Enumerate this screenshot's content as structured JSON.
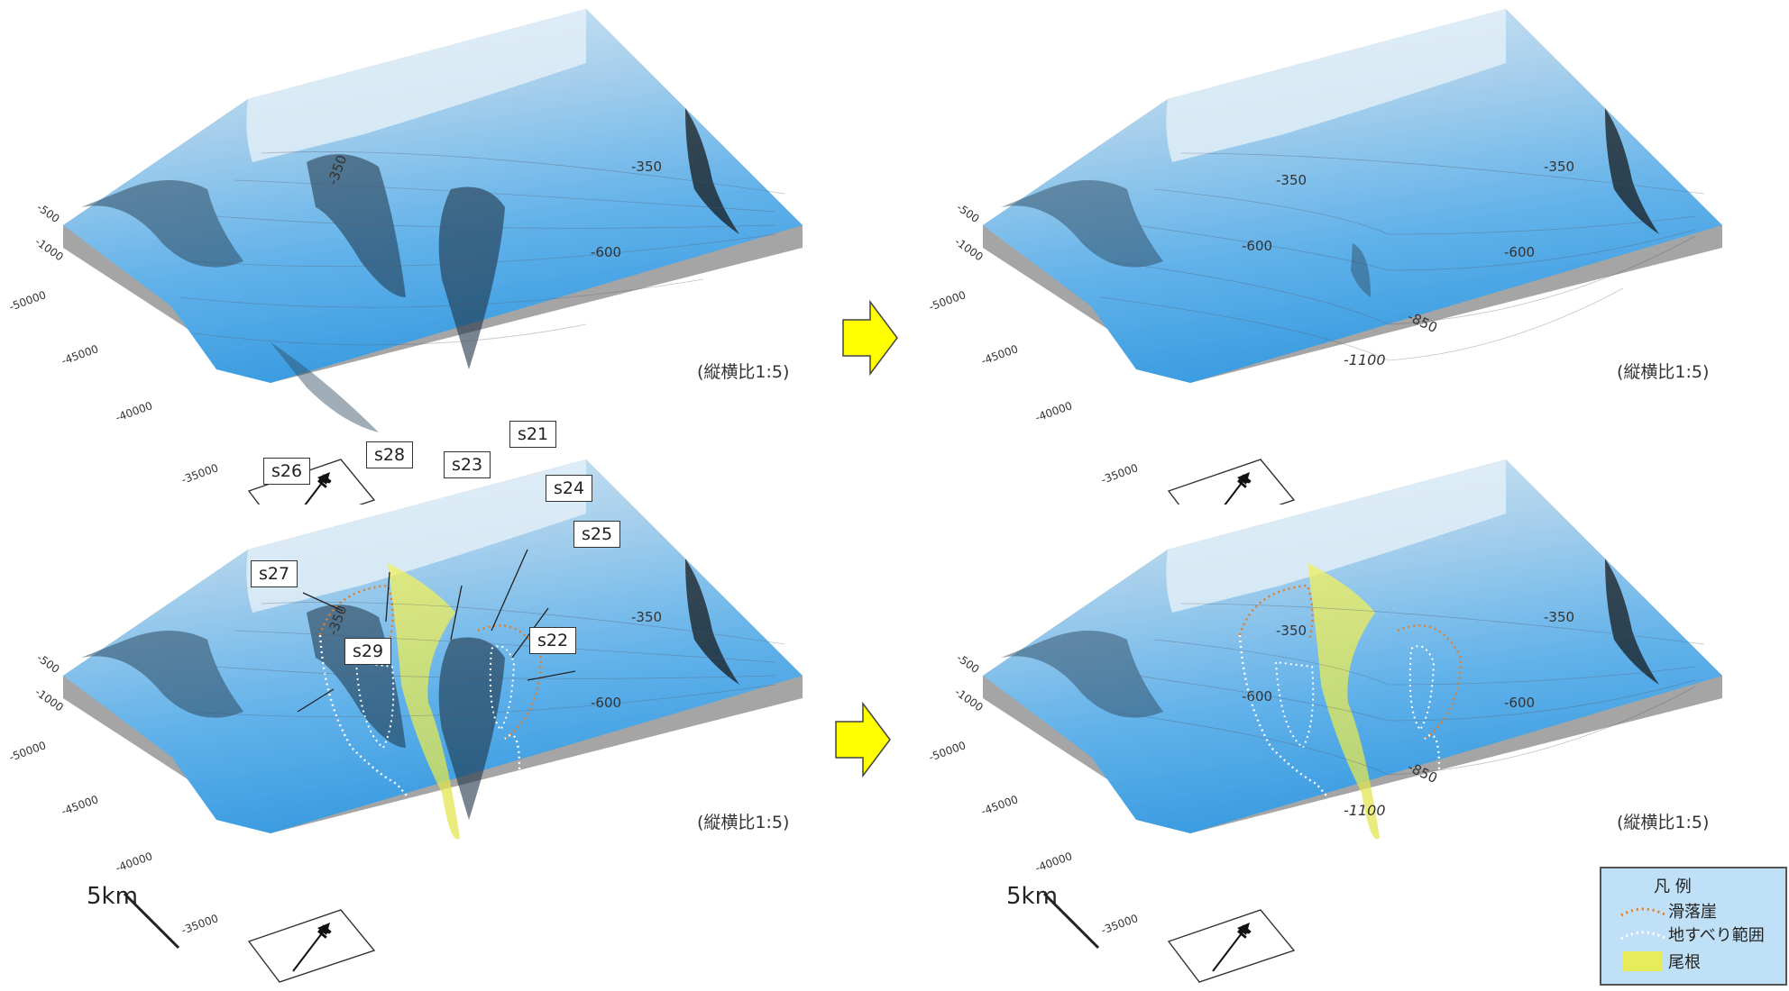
{
  "panels": {
    "top_left": {
      "ratio": "(縦横比1:5)",
      "contours": [
        "-350",
        "-600",
        "-350"
      ],
      "axis": [
        "-500",
        "-1000",
        "-50000",
        "-45000",
        "-40000",
        "-35000"
      ],
      "north": "N"
    },
    "top_right": {
      "ratio": "(縦横比1:5)",
      "contours": [
        "-350",
        "-350",
        "-600",
        "-600",
        "-850",
        "-1100"
      ],
      "axis": [
        "-500",
        "-1000",
        "-50000",
        "-45000",
        "-40000",
        "-35000"
      ],
      "north": "N"
    },
    "bottom_left": {
      "ratio": "(縦横比1:5)",
      "contours": [
        "-350",
        "-600",
        "-350"
      ],
      "axis": [
        "-500",
        "-1000",
        "-50000",
        "-45000",
        "-40000",
        "-35000"
      ],
      "north": "N",
      "scale": "5km"
    },
    "bottom_right": {
      "ratio": "(縦横比1:5)",
      "contours": [
        "-350",
        "-350",
        "-600",
        "-600",
        "-850",
        "-1100"
      ],
      "axis": [
        "-500",
        "-1000",
        "-50000",
        "-45000",
        "-40000",
        "-35000"
      ],
      "north": "N",
      "scale": "5km"
    }
  },
  "labels": [
    "s21",
    "s22",
    "s23",
    "s24",
    "s25",
    "s26",
    "s27",
    "s28",
    "s29"
  ],
  "legend": {
    "title": "凡 例",
    "scarp": "滑落崖",
    "landslide": "地すべり範囲",
    "ridge": "尾根"
  },
  "colors": {
    "arrow": "#ffff00",
    "scarp": "#e87c1e",
    "landslide": "#ffffff",
    "ridge": "#e6ec5a",
    "sea": "#4aa8e8",
    "side": "#a9a9a9"
  }
}
